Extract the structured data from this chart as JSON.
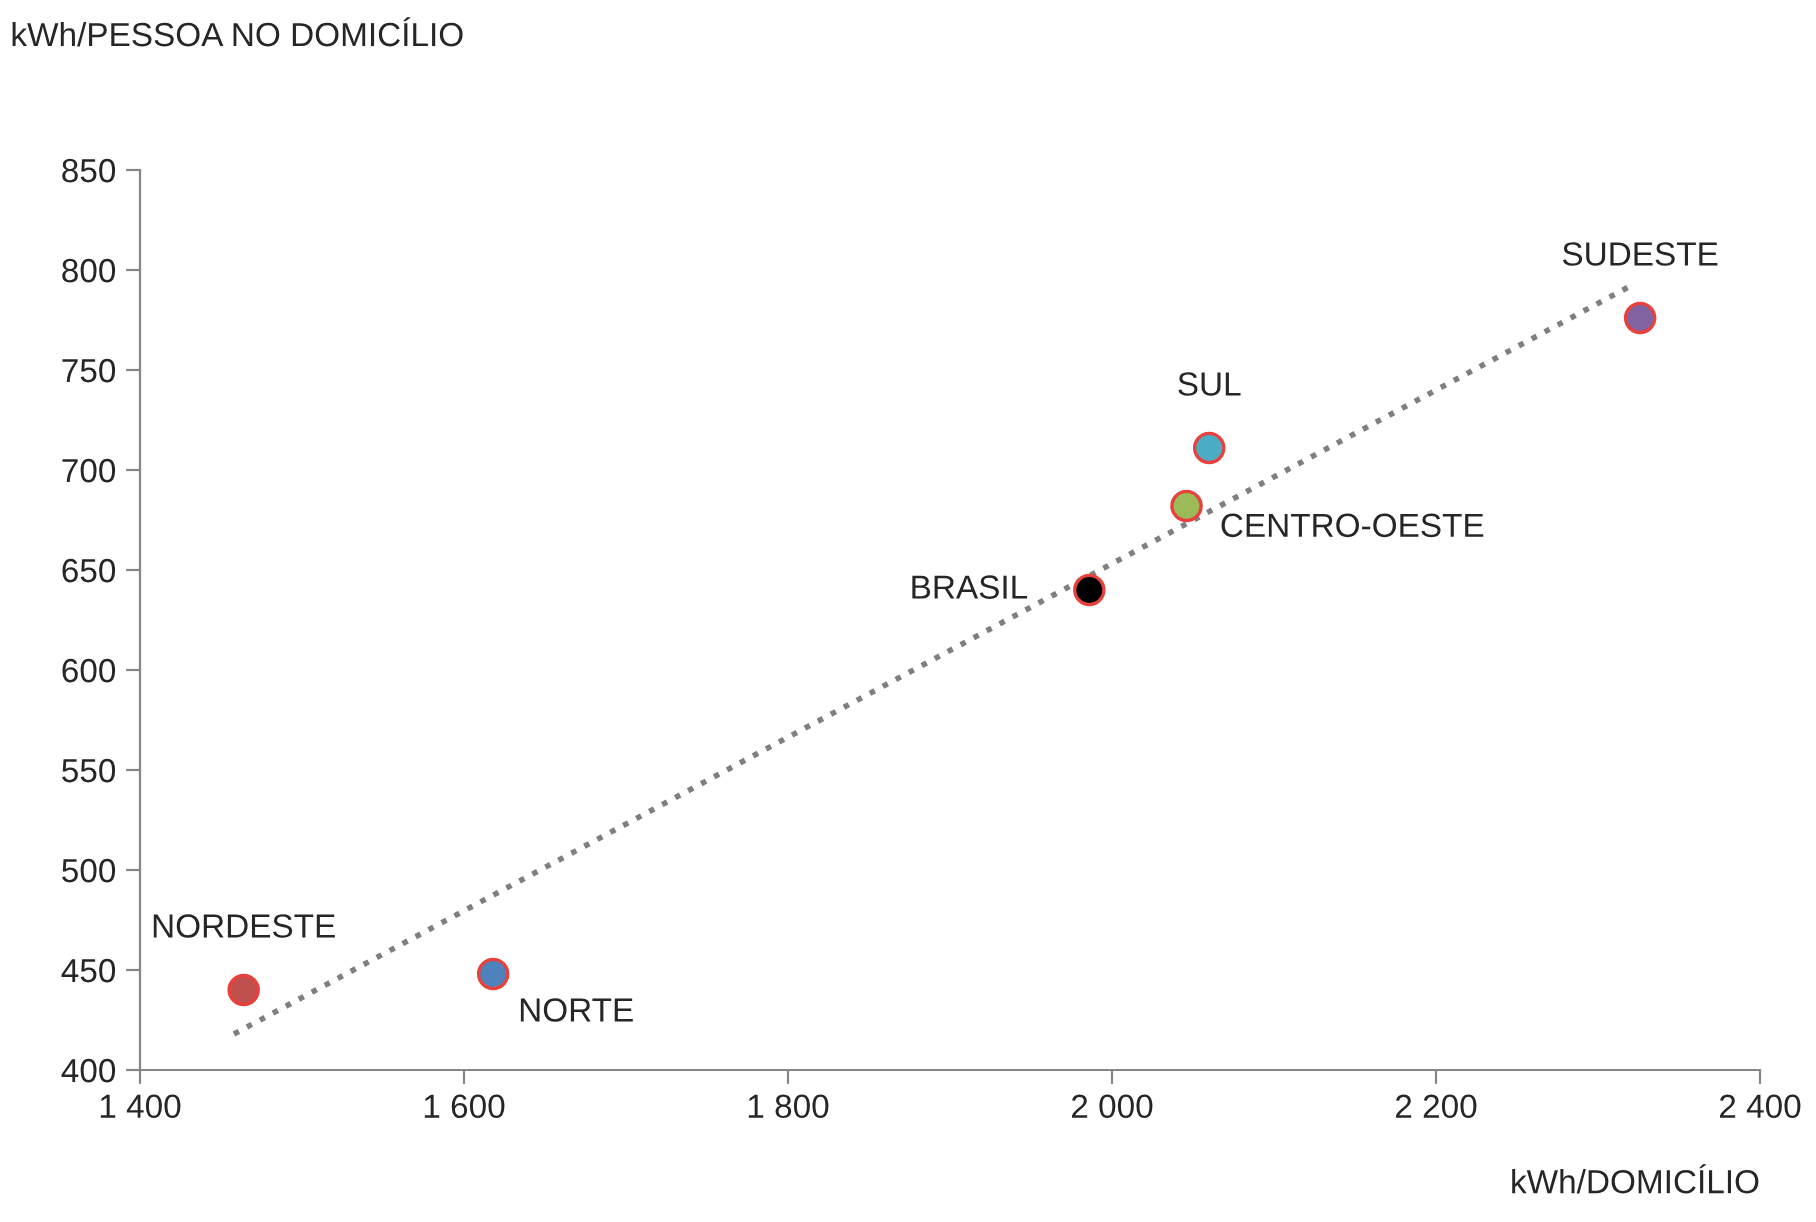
{
  "chart_data": {
    "type": "scatter",
    "xlabel": "kWh/DOMICÍLIO",
    "ylabel": "kWh/PESSOA NO DOMICÍLIO",
    "xlim": [
      1400,
      2400
    ],
    "xticks": [
      {
        "value": 1400,
        "label": "1 400"
      },
      {
        "value": 1600,
        "label": "1 600"
      },
      {
        "value": 1800,
        "label": "1 800"
      },
      {
        "value": 2000,
        "label": "2 000"
      },
      {
        "value": 2200,
        "label": "2 200"
      },
      {
        "value": 2400,
        "label": "2 400"
      }
    ],
    "ylim": [
      400,
      850
    ],
    "yticks": [
      400,
      450,
      500,
      550,
      600,
      650,
      700,
      750,
      800,
      850
    ],
    "grid": false,
    "legend": false,
    "marker": "circle",
    "series": [
      {
        "name": "NORDESTE",
        "color": "#c0504d",
        "x": [
          1464
        ],
        "values": [
          440
        ]
      },
      {
        "name": "NORTE",
        "color": "#4f81bd",
        "x": [
          1618
        ],
        "values": [
          448
        ]
      },
      {
        "name": "BRASIL",
        "color": "#000000",
        "x": [
          1986
        ],
        "values": [
          640
        ]
      },
      {
        "name": "CENTRO-OESTE",
        "color": "#9bbb59",
        "x": [
          2046
        ],
        "values": [
          682
        ]
      },
      {
        "name": "SUL",
        "color": "#4bacc6",
        "x": [
          2060
        ],
        "values": [
          711
        ]
      },
      {
        "name": "SUDESTE",
        "color": "#8064a2",
        "x": [
          2326
        ],
        "values": [
          776
        ]
      },
      {
        "type": "line",
        "color": "#7f7f7f",
        "line_style": "dotted",
        "marker": "none",
        "x": [
          1458,
          2320
        ],
        "values": [
          418,
          792
        ]
      }
    ]
  }
}
